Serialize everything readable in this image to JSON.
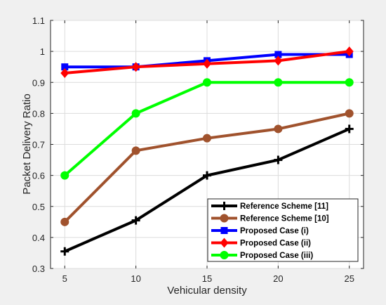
{
  "chart_data": {
    "type": "line",
    "title": "",
    "xlabel": "Vehicular density",
    "ylabel": "Packet Delivery Ratio",
    "x": [
      5,
      10,
      15,
      20,
      25
    ],
    "xlim": [
      4,
      26
    ],
    "ylim": [
      0.3,
      1.1
    ],
    "xticks": [
      "5",
      "10",
      "15",
      "20",
      "25"
    ],
    "yticks": [
      "0.3",
      "0.4",
      "0.5",
      "0.6",
      "0.7",
      "0.8",
      "0.9",
      "1",
      "1.1"
    ],
    "grid": true,
    "legend_position": "bottom-right",
    "series": [
      {
        "name": "Reference Scheme [11]",
        "values": [
          0.355,
          0.455,
          0.6,
          0.65,
          0.75
        ],
        "color": "#000000",
        "marker": "plus"
      },
      {
        "name": "Reference Scheme [10]",
        "values": [
          0.45,
          0.68,
          0.72,
          0.75,
          0.8
        ],
        "color": "#a0522d",
        "marker": "circle"
      },
      {
        "name": "Proposed Case (i)",
        "values": [
          0.95,
          0.95,
          0.97,
          0.99,
          0.99
        ],
        "color": "#0000ff",
        "marker": "square"
      },
      {
        "name": "Proposed Case (ii)",
        "values": [
          0.93,
          0.95,
          0.96,
          0.97,
          1.0
        ],
        "color": "#ff0000",
        "marker": "diamond"
      },
      {
        "name": "Proposed Case (iii)",
        "values": [
          0.6,
          0.8,
          0.9,
          0.9,
          0.9
        ],
        "color": "#00ff00",
        "marker": "circle"
      }
    ]
  }
}
